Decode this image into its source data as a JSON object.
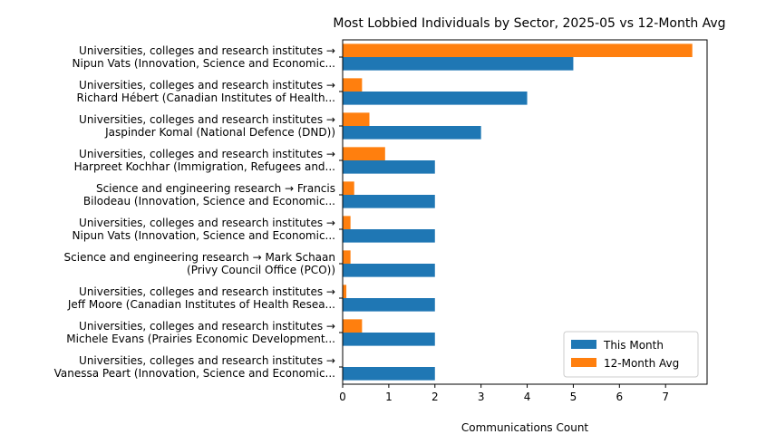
{
  "chart_data": {
    "type": "bar",
    "orientation": "horizontal",
    "title": "Most Lobbied Individuals by Sector, 2025-05 vs 12-Month Avg",
    "xlabel": "Communications Count",
    "ylabel": "",
    "xlim": [
      0,
      7.9
    ],
    "xticks": [
      0,
      1,
      2,
      3,
      4,
      5,
      6,
      7
    ],
    "categories": [
      [
        "Universities, colleges and research institutes →",
        "Nipun Vats (Innovation, Science and Economic..."
      ],
      [
        "Universities, colleges and research institutes →",
        "Richard Hébert (Canadian Institutes of Health..."
      ],
      [
        "Universities, colleges and research institutes →",
        "Jaspinder Komal (National Defence (DND))"
      ],
      [
        "Universities, colleges and research institutes →",
        "Harpreet Kochhar (Immigration, Refugees and..."
      ],
      [
        "Science and engineering research → Francis",
        "Bilodeau (Innovation, Science and Economic..."
      ],
      [
        "Universities, colleges and research institutes →",
        "Nipun Vats (Innovation, Science and Economic..."
      ],
      [
        "Science and engineering research → Mark Schaan",
        "(Privy Council Office (PCO))"
      ],
      [
        "Universities, colleges and research institutes →",
        "Jeff Moore (Canadian Institutes of Health Resea..."
      ],
      [
        "Universities, colleges and research institutes →",
        "Michele Evans (Prairies Economic Development..."
      ],
      [
        "Universities, colleges and research institutes →",
        "Vanessa Peart (Innovation, Science and Economic..."
      ]
    ],
    "series": [
      {
        "name": "This Month",
        "color": "#1f77b4",
        "values": [
          5,
          4,
          3,
          2,
          2,
          2,
          2,
          2,
          2,
          2
        ]
      },
      {
        "name": "12-Month Avg",
        "color": "#ff7f0e",
        "values": [
          7.58,
          0.42,
          0.58,
          0.92,
          0.25,
          0.17,
          0.17,
          0.08,
          0.42,
          0
        ]
      }
    ],
    "legend": {
      "position": "lower-right"
    },
    "grid": false
  }
}
